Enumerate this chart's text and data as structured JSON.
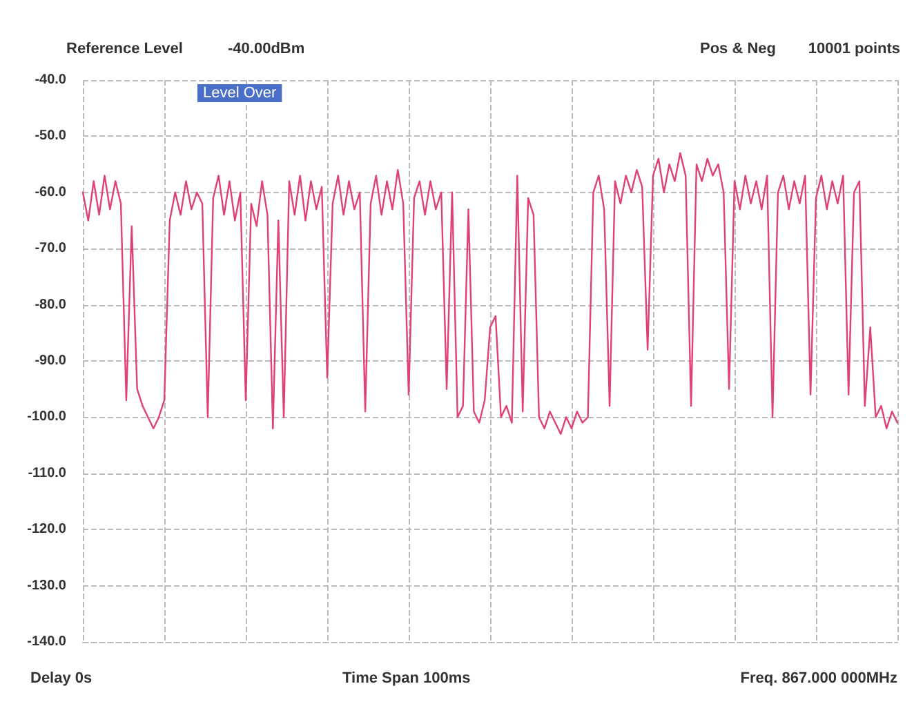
{
  "chart_data": {
    "type": "line",
    "categories": [
      null,
      null,
      null,
      null,
      null,
      null,
      null,
      null,
      null,
      null,
      null,
      null,
      null,
      null,
      null,
      null,
      null,
      null,
      null,
      null,
      null,
      null,
      null,
      null,
      null,
      null,
      null,
      null,
      null,
      null,
      null,
      null,
      null,
      null,
      null,
      null,
      null,
      null,
      null,
      null,
      null,
      null,
      null,
      null,
      null,
      null,
      null,
      null,
      null,
      null,
      null,
      null,
      null,
      null,
      null,
      null,
      null,
      null,
      null,
      null,
      null,
      null,
      null,
      null,
      null,
      null,
      null,
      null,
      null,
      null,
      null,
      null,
      null,
      null,
      null,
      null,
      null,
      null,
      null,
      null,
      null,
      null,
      null,
      null,
      null,
      null,
      null,
      null,
      null,
      null,
      null,
      null,
      null,
      null,
      null,
      null,
      null,
      null,
      null,
      null,
      null,
      null,
      null,
      null,
      null,
      null,
      null,
      null,
      null,
      null,
      null,
      null,
      null,
      null,
      null,
      null,
      null,
      null,
      null,
      null,
      null,
      null,
      null,
      null,
      null,
      null,
      null,
      null,
      null,
      null,
      null,
      null,
      null,
      null,
      null,
      null,
      null,
      null,
      null,
      null,
      null,
      null,
      null,
      null,
      null,
      null,
      null,
      null,
      null,
      null,
      null
    ],
    "series": [
      {
        "color": "#e0407a",
        "values": [
          -60,
          -65,
          -58,
          -64,
          -57,
          -63,
          -58,
          -62,
          -97,
          -66,
          -95,
          -98,
          -100,
          -102,
          -100,
          -97,
          -65,
          -60,
          -64,
          -58,
          -63,
          -60,
          -62,
          -100,
          -61,
          -57,
          -64,
          -58,
          -65,
          -60,
          -97,
          -62,
          -66,
          -58,
          -64,
          -102,
          -65,
          -100,
          -58,
          -64,
          -57,
          -65,
          -58,
          -63,
          -59,
          -93,
          -62,
          -57,
          -64,
          -58,
          -63,
          -60,
          -99,
          -62,
          -57,
          -64,
          -58,
          -63,
          -56,
          -62,
          -96,
          -61,
          -58,
          -64,
          -58,
          -63,
          -60,
          -95,
          -60,
          -100,
          -98,
          -63,
          -99,
          -101,
          -97,
          -84,
          -82,
          -100,
          -98,
          -101,
          -57,
          -99,
          -61,
          -64,
          -100,
          -102,
          -99,
          -101,
          -103,
          -100,
          -102,
          -99,
          -101,
          -100,
          -60,
          -57,
          -63,
          -98,
          -58,
          -62,
          -57,
          -60,
          -56,
          -59,
          -88,
          -57,
          -54,
          -60,
          -55,
          -58,
          -53,
          -57,
          -98,
          -55,
          -58,
          -54,
          -57,
          -55,
          -60,
          -95,
          -58,
          -63,
          -57,
          -62,
          -58,
          -63,
          -57,
          -100,
          -60,
          -57,
          -63,
          -58,
          -62,
          -57,
          -96,
          -61,
          -57,
          -63,
          -58,
          -62,
          -57,
          -96,
          -60,
          -58,
          -98,
          -84,
          -100,
          -98,
          -102,
          -99,
          -101
        ]
      }
    ],
    "ylim": [
      -140,
      -40
    ],
    "yticks": [
      {
        "value": -140,
        "label": "-140.0"
      },
      {
        "value": -130,
        "label": "-130.0"
      },
      {
        "value": -120,
        "label": "-120.0"
      },
      {
        "value": -110,
        "label": "-110.0"
      },
      {
        "value": -100,
        "label": "-100.0"
      },
      {
        "value": -90,
        "label": "-90.0"
      },
      {
        "value": -80,
        "label": "-80.0"
      },
      {
        "value": -70,
        "label": "-70.0"
      },
      {
        "value": -60,
        "label": "-60.0"
      },
      {
        "value": -50,
        "label": "-50.0"
      },
      {
        "value": -40,
        "label": "-40.0"
      }
    ],
    "grid": true,
    "tick_labels": "y",
    "line_style": "solid",
    "annotations": [
      "Reference Level",
      "-40.00dBm",
      "Pos & Neg",
      "10001 points",
      "Delay 0s",
      "Time Span 100ms",
      "Freq. 867.000 000MHz",
      "Level Over"
    ]
  }
}
